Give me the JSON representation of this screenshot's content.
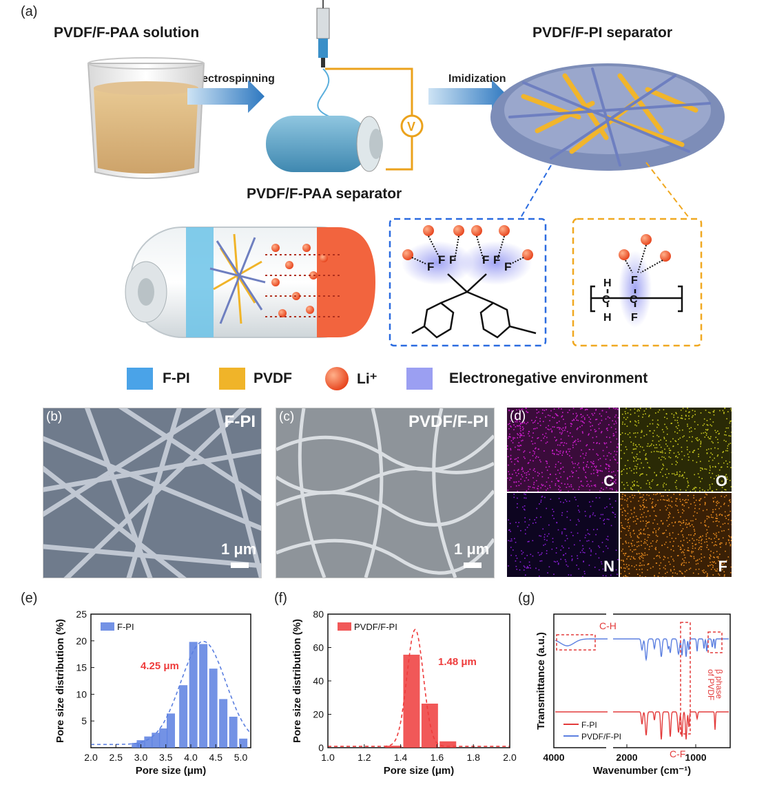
{
  "panel_labels": {
    "a": "(a)",
    "b": "(b)",
    "c": "(c)",
    "d": "(d)",
    "e": "(e)",
    "f": "(f)",
    "g": "(g)"
  },
  "schematic": {
    "solution_title": "PVDF/F-PAA solution",
    "separator_title": "PVDF/F-PI separator",
    "paa_separator_title": "PVDF/F-PAA separator",
    "electrospinning": "Electrospinning",
    "imidization": "Imidization",
    "voltage_symbol": "V",
    "chem_atoms": {
      "F": "F",
      "C": "C",
      "H": "H"
    }
  },
  "legend": [
    {
      "label": "F-PI",
      "color": "#4aa3e8"
    },
    {
      "label": "PVDF",
      "color": "#f0b429"
    },
    {
      "label": "Li⁺",
      "color": "#f05a2a"
    },
    {
      "label": "Electronegative environment",
      "color": "#8a8ef0"
    }
  ],
  "sem": {
    "b_label": "F-PI",
    "b_scale": "1 μm",
    "c_label": "PVDF/F-PI",
    "c_scale": "1 μm"
  },
  "eds": {
    "C": "C",
    "O": "O",
    "N": "N",
    "F": "F",
    "colors": {
      "C": "#d21fd2",
      "O": "#c8c81e",
      "N": "#8a1fd8",
      "F": "#e68a1e"
    }
  },
  "chart_data": [
    {
      "panel": "e",
      "type": "bar",
      "xlabel": "Pore size (μm)",
      "ylabel": "Pore size distribution (%)",
      "xlim": [
        2.0,
        5.2
      ],
      "ylim": [
        0,
        25
      ],
      "xticks": [
        "2.0",
        "2.5",
        "3.0",
        "3.5",
        "4.0",
        "4.5",
        "5.0"
      ],
      "yticks": [
        "5",
        "10",
        "15",
        "20",
        "25"
      ],
      "legend": "F-PI",
      "annotation": "4.25 μm",
      "x": [
        2.9,
        3.0,
        3.15,
        3.3,
        3.45,
        3.6,
        3.85,
        4.05,
        4.25,
        4.45,
        4.65,
        4.85,
        5.05
      ],
      "values": [
        0.9,
        1.4,
        2.1,
        2.8,
        3.6,
        6.4,
        11.7,
        19.8,
        19.4,
        14.8,
        9.1,
        5.8,
        1.7
      ],
      "fit_center": 4.25,
      "fit_peak": 19.3,
      "fit_sigma": 0.45,
      "color": "#5b7fe0"
    },
    {
      "panel": "f",
      "type": "bar",
      "xlabel": "Pore size (μm)",
      "ylabel": "Pore size distribution (%)",
      "xlim": [
        1.0,
        2.0
      ],
      "ylim": [
        0,
        80
      ],
      "xticks": [
        "1.0",
        "1.2",
        "1.4",
        "1.6",
        "1.8",
        "2.0"
      ],
      "yticks": [
        "0",
        "20",
        "40",
        "60",
        "80"
      ],
      "legend": "PVDF/F-PI",
      "annotation": "1.48 μm",
      "x": [
        1.36,
        1.46,
        1.56,
        1.66
      ],
      "values": [
        1.2,
        55.7,
        26.4,
        3.8
      ],
      "fit_center": 1.48,
      "fit_peak": 70,
      "fit_sigma": 0.045,
      "color": "#ee3b3b"
    },
    {
      "panel": "g",
      "type": "line",
      "xlabel": "Wavenumber (cm⁻¹)",
      "ylabel": "Transmittance (a.u.)",
      "xticks": [
        "4000",
        "2000",
        "1000"
      ],
      "series": [
        {
          "name": "F-PI",
          "color": "#e33b3b"
        },
        {
          "name": "PVDF/F-PI",
          "color": "#5b7fe0"
        }
      ],
      "annotations": {
        "ch": "C-H",
        "cf": "C-F",
        "beta1": "β phase",
        "beta2": "of PVDF"
      }
    }
  ]
}
